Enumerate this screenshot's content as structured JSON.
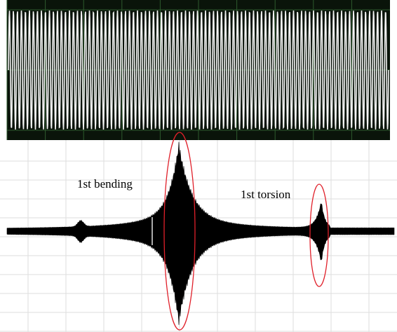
{
  "annotations": {
    "bending": "1st bending",
    "torsion": "1st torsion"
  }
}
